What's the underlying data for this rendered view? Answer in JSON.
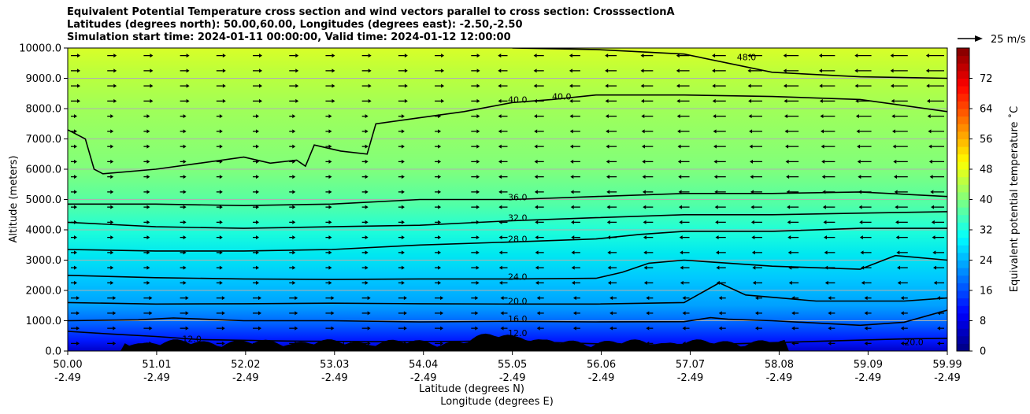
{
  "title": {
    "line1": "Equivalent Potential Temperature cross section and wind vectors parallel to cross section: CrosssectionA",
    "line2": "Latitudes (degrees north): 50.00,60.00, Longitudes (degrees east): -2.50,-2.50",
    "line3": "Simulation start time: 2024-01-11 00:00:00, Valid time: 2024-01-12 12:00:00"
  },
  "chart_data": {
    "type": "heatmap",
    "xlabel": "Latitude (degrees N)",
    "xlabel2": "Longitude (degrees E)",
    "ylabel": "Altitude (meters)",
    "xlim": [
      50.0,
      59.99
    ],
    "ylim": [
      0,
      10000
    ],
    "x_ticks": [
      50.0,
      51.01,
      52.02,
      53.03,
      54.04,
      55.05,
      56.06,
      57.07,
      58.08,
      59.09,
      59.99
    ],
    "x_tick_labels": [
      "50.00",
      "51.01",
      "52.02",
      "53.03",
      "54.04",
      "55.05",
      "56.06",
      "57.07",
      "58.08",
      "59.09",
      "59.99"
    ],
    "x_tick_labels2": [
      "-2.49",
      "-2.49",
      "-2.49",
      "-2.49",
      "-2.49",
      "-2.49",
      "-2.49",
      "-2.49",
      "-2.49",
      "-2.49",
      "-2.49"
    ],
    "y_ticks": [
      0,
      1000,
      2000,
      3000,
      4000,
      5000,
      6000,
      7000,
      8000,
      9000,
      10000
    ],
    "y_tick_labels": [
      "0.0",
      "1000.0",
      "2000.0",
      "3000.0",
      "4000.0",
      "5000.0",
      "6000.0",
      "7000.0",
      "8000.0",
      "9000.0",
      "10000.0"
    ],
    "grid": "horizontal",
    "colorbar": {
      "label": "Equivalent potential temperature ˚C",
      "range": [
        0,
        80
      ],
      "ticks": [
        0,
        8,
        16,
        24,
        32,
        40,
        48,
        56,
        64,
        72
      ],
      "tick_labels": [
        "0",
        "8",
        "16",
        "24",
        "32",
        "40",
        "48",
        "56",
        "64",
        "72"
      ],
      "colormap": "jet"
    },
    "wind_reference": {
      "label": "25 m/s",
      "speed": 25
    },
    "contours": [
      {
        "level": 12,
        "label": "12.0",
        "points": [
          [
            50.0,
            650
          ],
          [
            50.5,
            560
          ],
          [
            51.0,
            480
          ],
          [
            51.5,
            380
          ],
          [
            52.5,
            330
          ],
          [
            53.5,
            310
          ],
          [
            54.5,
            320
          ],
          [
            55.05,
            350
          ],
          [
            55.5,
            280
          ],
          [
            56.5,
            200
          ],
          [
            57.5,
            230
          ],
          [
            58.5,
            320
          ],
          [
            59.5,
            400
          ],
          [
            59.99,
            420
          ]
        ]
      },
      {
        "level": 16,
        "label": "16.0",
        "points": [
          [
            50.0,
            1000
          ],
          [
            50.8,
            1030
          ],
          [
            51.2,
            1090
          ],
          [
            52.0,
            1000
          ],
          [
            53.0,
            1000
          ],
          [
            54.0,
            960
          ],
          [
            55.05,
            980
          ],
          [
            56.0,
            960
          ],
          [
            57.0,
            970
          ],
          [
            57.3,
            1100
          ],
          [
            57.5,
            1050
          ],
          [
            58.0,
            1000
          ],
          [
            59.0,
            850
          ],
          [
            59.5,
            950
          ],
          [
            59.99,
            1350
          ]
        ]
      },
      {
        "level": 20,
        "label": "20.0",
        "points": [
          [
            50.0,
            1600
          ],
          [
            51.0,
            1550
          ],
          [
            52.0,
            1560
          ],
          [
            53.0,
            1580
          ],
          [
            54.0,
            1560
          ],
          [
            55.05,
            1550
          ],
          [
            56.0,
            1550
          ],
          [
            57.0,
            1600
          ],
          [
            57.4,
            2250
          ],
          [
            57.7,
            1850
          ],
          [
            58.5,
            1650
          ],
          [
            59.5,
            1650
          ],
          [
            59.99,
            1750
          ]
        ]
      },
      {
        "level": 24,
        "label": "24.0",
        "points": [
          [
            50.0,
            2500
          ],
          [
            51.0,
            2420
          ],
          [
            52.0,
            2380
          ],
          [
            53.0,
            2360
          ],
          [
            54.0,
            2380
          ],
          [
            55.05,
            2380
          ],
          [
            56.0,
            2400
          ],
          [
            56.3,
            2600
          ],
          [
            56.6,
            2900
          ],
          [
            57.0,
            3000
          ],
          [
            58.0,
            2800
          ],
          [
            59.0,
            2700
          ],
          [
            59.4,
            3150
          ],
          [
            59.99,
            3000
          ]
        ]
      },
      {
        "level": 28,
        "label": "28.0",
        "points": [
          [
            50.0,
            3350
          ],
          [
            51.0,
            3300
          ],
          [
            52.0,
            3300
          ],
          [
            53.0,
            3350
          ],
          [
            54.0,
            3500
          ],
          [
            55.05,
            3600
          ],
          [
            56.0,
            3700
          ],
          [
            56.5,
            3850
          ],
          [
            57.0,
            3950
          ],
          [
            58.0,
            3950
          ],
          [
            59.0,
            4050
          ],
          [
            59.99,
            4050
          ]
        ]
      },
      {
        "level": 32,
        "label": "32.0",
        "points": [
          [
            50.0,
            4250
          ],
          [
            51.0,
            4100
          ],
          [
            52.0,
            4050
          ],
          [
            53.0,
            4100
          ],
          [
            54.0,
            4150
          ],
          [
            55.05,
            4300
          ],
          [
            56.0,
            4400
          ],
          [
            57.0,
            4500
          ],
          [
            58.0,
            4500
          ],
          [
            59.0,
            4550
          ],
          [
            59.99,
            4600
          ]
        ]
      },
      {
        "level": 36,
        "label": "36.0",
        "points": [
          [
            50.0,
            4850
          ],
          [
            51.0,
            4850
          ],
          [
            52.0,
            4800
          ],
          [
            53.0,
            4850
          ],
          [
            54.0,
            5000
          ],
          [
            55.05,
            5000
          ],
          [
            56.0,
            5100
          ],
          [
            57.0,
            5200
          ],
          [
            58.0,
            5200
          ],
          [
            59.0,
            5250
          ],
          [
            59.99,
            5100
          ]
        ]
      },
      {
        "level": 40,
        "label": "40.0",
        "points": [
          [
            50.0,
            7300
          ],
          [
            50.2,
            7000
          ],
          [
            50.3,
            6000
          ],
          [
            50.4,
            5850
          ],
          [
            51.0,
            6000
          ],
          [
            51.5,
            6200
          ],
          [
            52.0,
            6400
          ],
          [
            52.3,
            6200
          ],
          [
            52.6,
            6300
          ],
          [
            52.7,
            6100
          ],
          [
            52.8,
            6800
          ],
          [
            53.1,
            6600
          ],
          [
            53.4,
            6500
          ],
          [
            53.5,
            7500
          ],
          [
            54.0,
            7700
          ],
          [
            54.5,
            7900
          ],
          [
            55.05,
            8200
          ],
          [
            55.5,
            8300
          ],
          [
            56.0,
            8450
          ],
          [
            57.0,
            8450
          ],
          [
            58.0,
            8400
          ],
          [
            59.0,
            8300
          ],
          [
            59.99,
            7900
          ]
        ]
      },
      {
        "level": 48,
        "label": "48.0",
        "points": [
          [
            55.05,
            10000
          ],
          [
            56.0,
            9950
          ],
          [
            57.0,
            9800
          ],
          [
            58.0,
            9200
          ],
          [
            59.0,
            9050
          ],
          [
            59.99,
            9000
          ]
        ]
      }
    ],
    "contour_labels": [
      {
        "text": "12.0",
        "x": 51.3,
        "y": 300
      },
      {
        "text": "12.0",
        "x": 53.1,
        "y": 130
      },
      {
        "text": "12.0",
        "x": 55.0,
        "y": 490
      },
      {
        "text": "16.0",
        "x": 55.0,
        "y": 960
      },
      {
        "text": "20.0",
        "x": 55.0,
        "y": 1550
      },
      {
        "text": "24.0",
        "x": 55.0,
        "y": 2350
      },
      {
        "text": "28.0",
        "x": 55.0,
        "y": 3600
      },
      {
        "text": "32.0",
        "x": 55.0,
        "y": 4300
      },
      {
        "text": "36.0",
        "x": 55.0,
        "y": 4980
      },
      {
        "text": "40.0",
        "x": 55.0,
        "y": 8200
      },
      {
        "text": "40.0",
        "x": 55.5,
        "y": 8300
      },
      {
        "text": "48.0",
        "x": 57.6,
        "y": 9600
      },
      {
        "text": "20.0",
        "x": 59.5,
        "y": 200
      }
    ]
  },
  "colors": {
    "contour": "#000000",
    "terrain": "#000000",
    "grid": "#b0b0b0",
    "arrow": "#000000"
  }
}
